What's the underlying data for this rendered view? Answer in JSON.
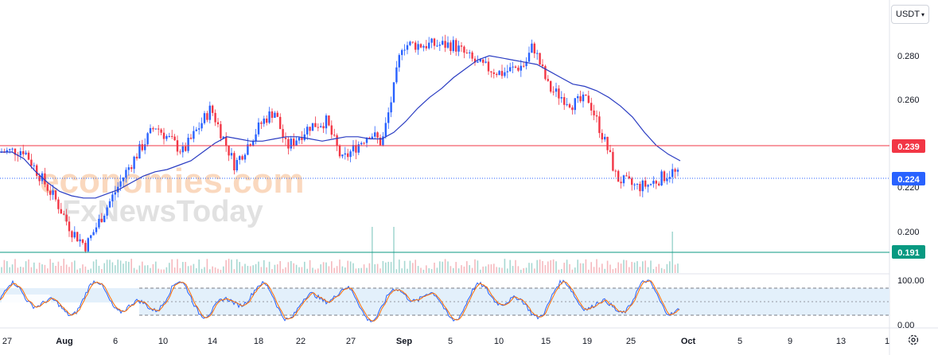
{
  "header": {
    "currency": "USDT"
  },
  "watermark": {
    "line1": "economies.com",
    "line2": "FxNewsToday"
  },
  "chart_data": {
    "type": "candlestick",
    "x_labels": [
      "27",
      "Aug",
      "6",
      "10",
      "14",
      "18",
      "22",
      "27",
      "Sep",
      "5",
      "10",
      "15",
      "19",
      "25",
      "Oct",
      "5",
      "9",
      "13",
      "1"
    ],
    "y_ticks": [
      "0.280",
      "0.260",
      "0.220",
      "0.200"
    ],
    "ylim": [
      0.185,
      0.3
    ],
    "price_labels": [
      {
        "value": "0.239",
        "color": "#f23645",
        "style": "solid"
      },
      {
        "value": "0.224",
        "color": "#2962ff",
        "style": "dotted"
      },
      {
        "value": "0.191",
        "color": "#089981",
        "style": "solid"
      }
    ],
    "moving_average": {
      "color": "#2a3cc2",
      "points": [
        [
          0,
          0.236
        ],
        [
          15,
          0.236
        ],
        [
          30,
          0.233
        ],
        [
          45,
          0.227
        ],
        [
          60,
          0.222
        ],
        [
          75,
          0.218
        ],
        [
          90,
          0.216
        ],
        [
          105,
          0.215
        ],
        [
          120,
          0.215
        ],
        [
          135,
          0.217
        ],
        [
          150,
          0.219
        ],
        [
          165,
          0.222
        ],
        [
          180,
          0.225
        ],
        [
          195,
          0.227
        ],
        [
          210,
          0.228
        ],
        [
          225,
          0.23
        ],
        [
          240,
          0.232
        ],
        [
          255,
          0.236
        ],
        [
          270,
          0.24
        ],
        [
          285,
          0.243
        ],
        [
          300,
          0.242
        ],
        [
          315,
          0.241
        ],
        [
          330,
          0.241
        ],
        [
          345,
          0.242
        ],
        [
          360,
          0.243
        ],
        [
          375,
          0.243
        ],
        [
          390,
          0.242
        ],
        [
          405,
          0.241
        ],
        [
          420,
          0.242
        ],
        [
          435,
          0.243
        ],
        [
          450,
          0.243
        ],
        [
          465,
          0.242
        ],
        [
          480,
          0.242
        ],
        [
          495,
          0.245
        ],
        [
          510,
          0.25
        ],
        [
          525,
          0.256
        ],
        [
          540,
          0.261
        ],
        [
          555,
          0.265
        ],
        [
          570,
          0.27
        ],
        [
          585,
          0.274
        ],
        [
          600,
          0.278
        ],
        [
          615,
          0.28
        ],
        [
          630,
          0.279
        ],
        [
          645,
          0.278
        ],
        [
          660,
          0.277
        ],
        [
          675,
          0.276
        ],
        [
          690,
          0.273
        ],
        [
          705,
          0.27
        ],
        [
          720,
          0.267
        ],
        [
          735,
          0.266
        ],
        [
          750,
          0.264
        ],
        [
          765,
          0.261
        ],
        [
          780,
          0.257
        ],
        [
          795,
          0.252
        ],
        [
          810,
          0.245
        ],
        [
          825,
          0.239
        ],
        [
          840,
          0.235
        ],
        [
          855,
          0.232
        ]
      ]
    },
    "candles_up_color": "#2962ff",
    "candles_down_color": "#f23645",
    "oscillator": {
      "ticks": [
        "100.00",
        "0.00"
      ],
      "upper": 80,
      "lower": 20,
      "mid": 50
    }
  }
}
